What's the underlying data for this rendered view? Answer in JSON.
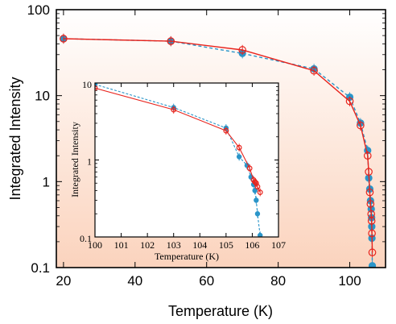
{
  "chart_data": [
    {
      "type": "line",
      "title": "",
      "xlabel": "Temperature (K)",
      "ylabel": "Integrated Intensity",
      "xlim": [
        18,
        110
      ],
      "ylim": [
        0.1,
        100
      ],
      "yscale": "log",
      "xticks": [
        "20",
        "40",
        "60",
        "80",
        "100"
      ],
      "yticks": [
        "0.1",
        "1",
        "10",
        "100"
      ],
      "background": {
        "gradient_from": "#ffffff",
        "gradient_to": "#fbd3bd"
      },
      "series": [
        {
          "color": "#e8231c",
          "marker": "open-circle",
          "linestyle": "solid",
          "x": [
            20,
            50,
            70,
            90,
            100,
            103,
            105,
            105.3,
            105.6,
            105.8,
            106.0,
            106.1,
            106.2,
            106.3
          ],
          "y": [
            46,
            43,
            34,
            19.5,
            8.6,
            4.5,
            2.0,
            1.3,
            0.75,
            0.55,
            0.42,
            0.35,
            0.25,
            0.15
          ]
        },
        {
          "color": "#2a95c9",
          "marker": "filled-circle",
          "linestyle": "dashed",
          "x": [
            20,
            50,
            70,
            90,
            100,
            103,
            105,
            105.3,
            105.6,
            105.8,
            106.0,
            106.1,
            106.15,
            106.2,
            106.3
          ],
          "y": [
            46,
            43,
            31,
            20.5,
            9.6,
            4.8,
            2.3,
            1.1,
            0.82,
            0.6,
            0.48,
            0.38,
            0.3,
            0.22,
            0.105
          ]
        }
      ]
    },
    {
      "type": "line",
      "title": "",
      "xlabel": "Temperature (K)",
      "ylabel": "Integrated Intensity",
      "xlim": [
        100,
        107
      ],
      "ylim": [
        0.1,
        10
      ],
      "yscale": "log",
      "xticks": [
        "100",
        "101",
        "102",
        "103",
        "104",
        "105",
        "106",
        "107"
      ],
      "yticks": [
        "0.1",
        "1",
        "10"
      ],
      "series": [
        {
          "color": "#e8231c",
          "marker": "open-circle",
          "linestyle": "solid",
          "x": [
            100,
            103,
            105,
            105.5,
            105.9,
            106.05,
            106.1,
            106.15,
            106.2,
            106.3
          ],
          "y": [
            8.6,
            4.5,
            2.4,
            1.45,
            0.78,
            0.55,
            0.52,
            0.5,
            0.45,
            0.38
          ]
        },
        {
          "color": "#2a95c9",
          "marker": "filled-circle",
          "linestyle": "dashed",
          "x": [
            100,
            103,
            105,
            105.5,
            105.8,
            105.95,
            106.05,
            106.1,
            106.15,
            106.2,
            106.3
          ],
          "y": [
            9.6,
            4.8,
            2.6,
            1.1,
            0.85,
            0.6,
            0.48,
            0.4,
            0.3,
            0.2,
            0.105
          ]
        }
      ]
    }
  ]
}
